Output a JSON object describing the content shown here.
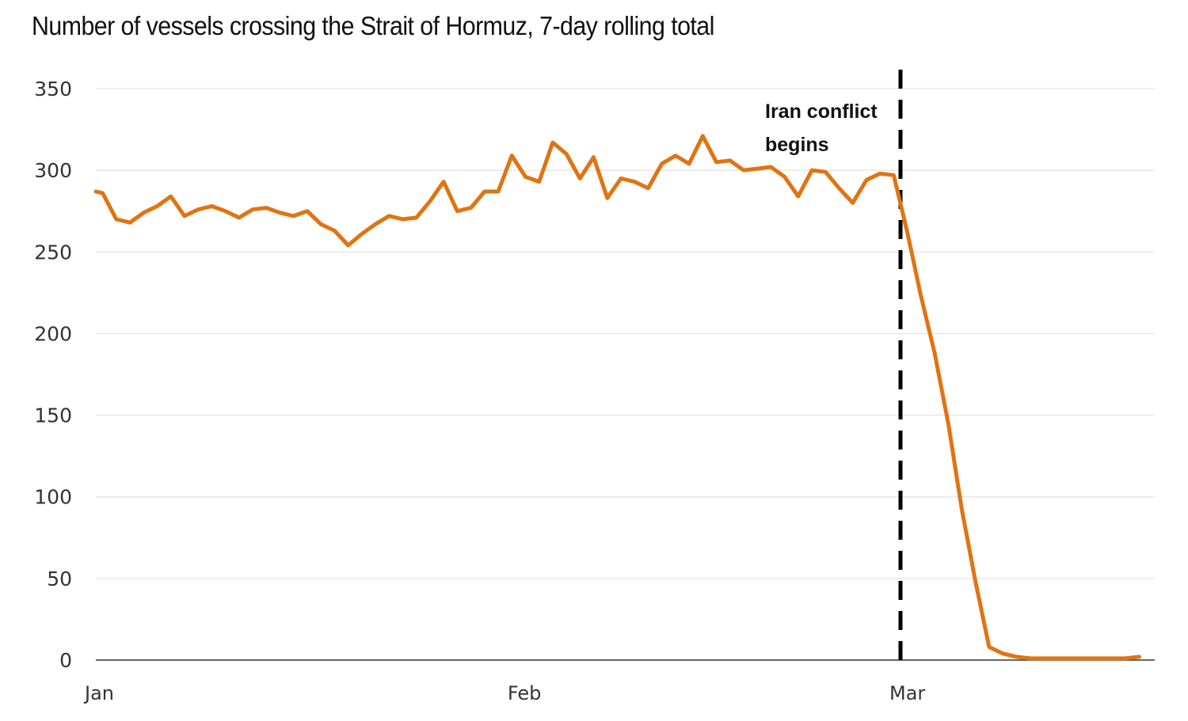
{
  "title": "Number of vessels crossing the Strait of Hormuz, 7-day rolling total",
  "colors": {
    "line": "#E07412",
    "grid": "#e3e3e3",
    "axis": "#333333",
    "event_line": "#000000"
  },
  "chart_data": {
    "type": "line",
    "title": "Number of vessels crossing the Strait of Hormuz, 7-day rolling total",
    "xlabel": "",
    "ylabel": "",
    "ylim": [
      0,
      350
    ],
    "yticks": [
      0,
      50,
      100,
      150,
      200,
      250,
      300,
      350
    ],
    "xtick_labels": [
      "Jan",
      "Feb",
      "Mar"
    ],
    "xtick_day_index": [
      0,
      31,
      59
    ],
    "grid": true,
    "legend": null,
    "annotation": {
      "text_line1": "Iran conflict",
      "text_line2": "begins",
      "day_index": 59,
      "style": "dashed vertical line"
    },
    "series": [
      {
        "name": "Vessels crossing (7-day rolling total)",
        "day_index": [
          0,
          0.5,
          1.5,
          2.5,
          3.5,
          4.5,
          5.5,
          6.5,
          7.5,
          8.5,
          9.5,
          10.5,
          11.5,
          12.5,
          13.5,
          14.5,
          15.5,
          16.5,
          17.5,
          18.5,
          19.5,
          20.5,
          21.5,
          22.5,
          23.5,
          24.5,
          25.5,
          26.5,
          27.5,
          28.5,
          29.5,
          30.5,
          31.5,
          32.5,
          33.5,
          34.5,
          35.5,
          36.5,
          37.5,
          38.5,
          39.5,
          40.5,
          41.5,
          42.5,
          43.5,
          44.5,
          45.5,
          46.5,
          47.5,
          48.5,
          49.5,
          50.5,
          51.5,
          52.5,
          53.5,
          54.5,
          55.5,
          56.5,
          57.5,
          58.5,
          59.5,
          60.5,
          61.5,
          62.5,
          63.5,
          64.5,
          65.5,
          66.5,
          67.5,
          68.5,
          69.5,
          70.5,
          71.5,
          72.5,
          73.5,
          74.5,
          75.5,
          76.5
        ],
        "values": [
          287,
          286,
          270,
          268,
          274,
          278,
          284,
          272,
          276,
          278,
          275,
          271,
          276,
          277,
          274,
          272,
          275,
          267,
          263,
          254,
          261,
          267,
          272,
          270,
          271,
          281,
          293,
          275,
          277,
          287,
          287,
          309,
          296,
          293,
          317,
          310,
          295,
          308,
          283,
          295,
          293,
          289,
          304,
          309,
          304,
          321,
          305,
          306,
          300,
          301,
          302,
          296,
          284,
          300,
          299,
          289,
          280,
          294,
          298,
          297,
          262,
          223,
          188,
          145,
          92,
          48,
          8,
          4,
          2,
          1,
          1,
          1,
          1,
          1,
          1,
          1,
          1,
          2
        ]
      }
    ]
  }
}
